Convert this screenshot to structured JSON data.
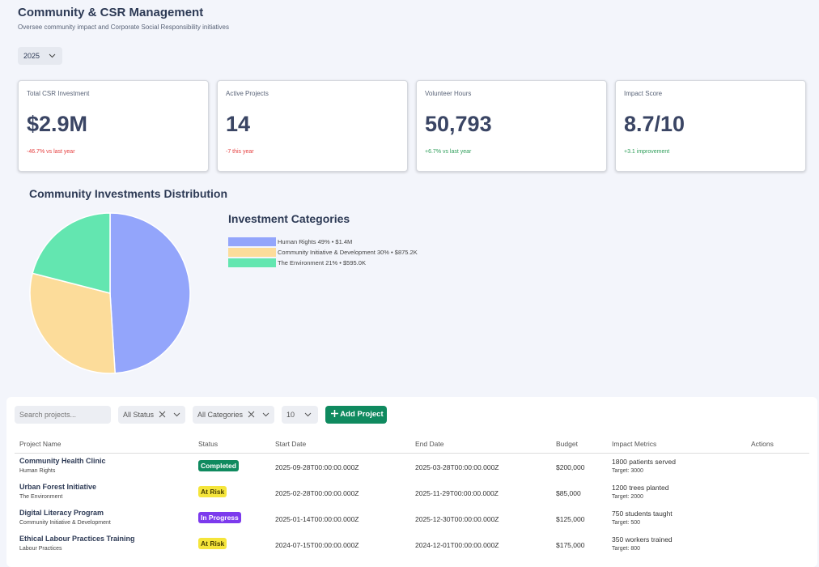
{
  "header": {
    "title": "Community & CSR Management",
    "subtitle": "Oversee community impact and Corporate Social Responsibility initiatives"
  },
  "year_filter": "2025",
  "kpis": [
    {
      "label": "Total CSR Investment",
      "value": "$2.9M",
      "change": "-46.7% vs last year",
      "change_color": "#e53e3e"
    },
    {
      "label": "Active Projects",
      "value": "14",
      "change": "-7 this year",
      "change_color": "#e53e3e"
    },
    {
      "label": "Volunteer Hours",
      "value": "50,793",
      "change": "+6.7% vs last year",
      "change_color": "#2f9e5a"
    },
    {
      "label": "Impact Score",
      "value": "8.7/10",
      "change": "+3.1 improvement",
      "change_color": "#2f9e5a"
    }
  ],
  "chart_data": {
    "type": "pie",
    "title": "Community Investments Distribution",
    "legend_title": "Investment Categories",
    "categories": [
      "Human Rights 49% • $1.4M",
      "Community Initiative & Development 30% • $875.2K",
      "The Environment 21% • $595.0K"
    ],
    "values": [
      49,
      30,
      21
    ],
    "colors": [
      "#93a5fb",
      "#fcdc9a",
      "#63e6b0"
    ]
  },
  "toolbar": {
    "search_placeholder": "Search projects...",
    "status_filter": "All Status",
    "category_filter": "All Categories",
    "page_size": "10",
    "add_button": "Add Project"
  },
  "table": {
    "columns": [
      "Project Name",
      "Status",
      "Start Date",
      "End Date",
      "Budget",
      "Impact Metrics",
      "Actions"
    ],
    "rows": [
      {
        "name": "Community Health Clinic",
        "category": "Human Rights",
        "status": "Completed",
        "status_bg": "#0f8a5f",
        "status_fg": "#ffffff",
        "start": "2025-09-28T00:00:00.000Z",
        "end": "2025-03-28T00:00:00.000Z",
        "budget": "$200,000",
        "impact": "1800 patients served",
        "target": "Target: 3000"
      },
      {
        "name": "Urban Forest Initiative",
        "category": "The Environment",
        "status": "At Risk",
        "status_bg": "#f5e53b",
        "status_fg": "#4a4000",
        "start": "2025-02-28T00:00:00.000Z",
        "end": "2025-11-29T00:00:00.000Z",
        "budget": "$85,000",
        "impact": "1200 trees planted",
        "target": "Target: 2000"
      },
      {
        "name": "Digital Literacy Program",
        "category": "Community Initiative & Development",
        "status": "In Progress",
        "status_bg": "#7c3aed",
        "status_fg": "#ffffff",
        "start": "2025-01-14T00:00:00.000Z",
        "end": "2025-12-30T00:00:00.000Z",
        "budget": "$125,000",
        "impact": "750 students taught",
        "target": "Target: 500"
      },
      {
        "name": "Ethical Labour Practices Training",
        "category": "Labour Practices",
        "status": "At Risk",
        "status_bg": "#f5e53b",
        "status_fg": "#4a4000",
        "start": "2024-07-15T00:00:00.000Z",
        "end": "2024-12-01T00:00:00.000Z",
        "budget": "$175,000",
        "impact": "350 workers trained",
        "target": "Target: 800"
      }
    ]
  }
}
